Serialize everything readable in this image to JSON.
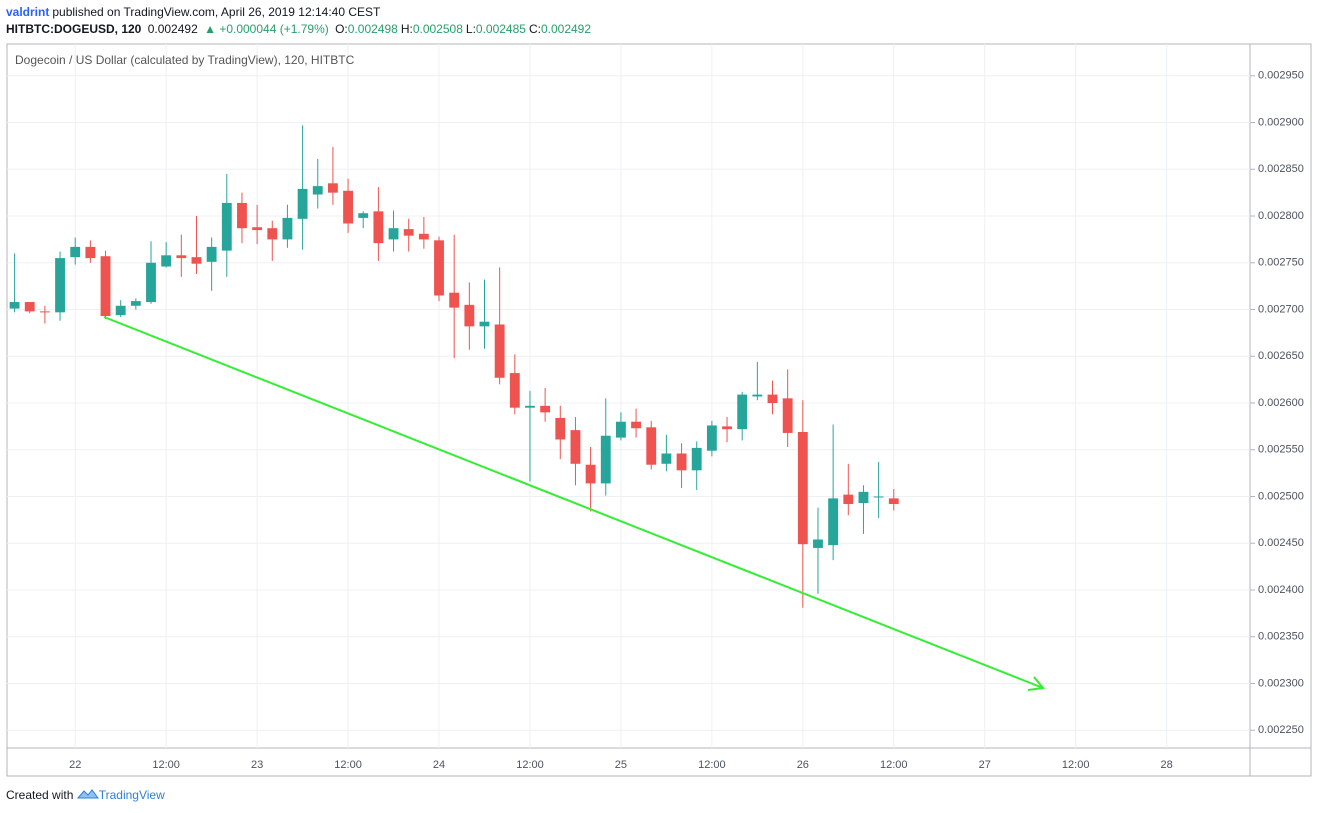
{
  "header": {
    "author": "valdrint",
    "published": "published on TradingView.com, April 26, 2019 12:14:40 CEST",
    "symbol": "HITBTC:DOGEUSD, 120",
    "last": "0.002492",
    "change": "▲ +0.000044 (+1.79%)",
    "ohlc": [
      {
        "label": "O:",
        "value": "0.002498"
      },
      {
        "label": "H:",
        "value": "0.002508"
      },
      {
        "label": "L:",
        "value": "0.002485"
      },
      {
        "label": "C:",
        "value": "0.002492"
      }
    ]
  },
  "chart_data": {
    "type": "candlestick",
    "title": "Dogecoin / US Dollar (calculated by TradingView), 120, HITBTC",
    "categories": [
      null,
      null,
      null,
      null,
      "22",
      null,
      null,
      null,
      null,
      null,
      "12:00",
      null,
      null,
      null,
      null,
      null,
      "23",
      null,
      null,
      null,
      null,
      null,
      "12:00",
      null,
      null,
      null,
      null,
      null,
      "24",
      null,
      null,
      null,
      null,
      null,
      "12:00",
      null,
      null,
      null,
      null,
      null,
      "25",
      null,
      null,
      null,
      null,
      null,
      "12:00",
      null,
      null,
      null,
      null,
      null,
      "26",
      null,
      null,
      null,
      null,
      null,
      "12:00",
      null,
      null,
      null,
      null,
      null,
      "27",
      null,
      null,
      null,
      null,
      null,
      "12:00",
      null,
      null,
      null,
      null,
      null,
      "28",
      null,
      null,
      null,
      null,
      null
    ],
    "open": [
      0.002701,
      0.002708,
      0.002698,
      0.002697,
      0.002756,
      0.002767,
      0.002757,
      0.002694,
      0.002704,
      0.002708,
      0.002746,
      0.002758,
      0.002756,
      0.002751,
      0.002763,
      0.002814,
      0.002788,
      0.002787,
      0.002775,
      0.002797,
      0.002823,
      0.002835,
      0.002827,
      0.002798,
      0.002805,
      0.002775,
      0.002786,
      0.002781,
      0.002774,
      0.002718,
      0.002705,
      0.002682,
      0.002684,
      0.002632,
      0.002595,
      0.002597,
      0.002584,
      0.002571,
      0.002534,
      0.002514,
      0.002563,
      0.00258,
      0.002574,
      0.002535,
      0.002546,
      0.002528,
      0.002549,
      0.002575,
      0.002572,
      0.002607,
      0.002609,
      0.002605,
      0.002569,
      0.002445,
      0.002448,
      0.002502,
      0.002493,
      0.002499,
      0.002498,
      null,
      null,
      null,
      null,
      null,
      null,
      null,
      null,
      null,
      null,
      null,
      null,
      null,
      null,
      null,
      null,
      null,
      null,
      null,
      null,
      null,
      null,
      null
    ],
    "high": [
      0.00276,
      0.002708,
      0.002704,
      0.002762,
      0.002777,
      0.002774,
      0.002763,
      0.00271,
      0.002712,
      0.002773,
      0.002772,
      0.00278,
      0.0028,
      0.002777,
      0.002845,
      0.002825,
      0.002812,
      0.002795,
      0.002812,
      0.002897,
      0.002861,
      0.002874,
      0.00284,
      0.002805,
      0.002831,
      0.002806,
      0.002797,
      0.002799,
      0.002778,
      0.00278,
      0.002729,
      0.002732,
      0.002745,
      0.002652,
      0.002613,
      0.002616,
      0.002597,
      0.002585,
      0.002553,
      0.002605,
      0.00259,
      0.002594,
      0.002581,
      0.002566,
      0.002557,
      0.002559,
      0.002581,
      0.002585,
      0.002612,
      0.002644,
      0.002624,
      0.002636,
      0.002603,
      0.002488,
      0.002577,
      0.002535,
      0.002512,
      0.002537,
      0.002508,
      null,
      null,
      null,
      null,
      null,
      null,
      null,
      null,
      null,
      null,
      null,
      null,
      null,
      null,
      null,
      null,
      null,
      null,
      null,
      null,
      null,
      null,
      null
    ],
    "low": [
      0.002697,
      0.002696,
      0.002685,
      0.002688,
      0.002748,
      0.00275,
      0.00269,
      0.002692,
      0.0027,
      0.002706,
      0.002745,
      0.002735,
      0.002738,
      0.00272,
      0.002735,
      0.002771,
      0.00277,
      0.002752,
      0.002766,
      0.002764,
      0.002808,
      0.002812,
      0.002782,
      0.002787,
      0.002752,
      0.002762,
      0.002762,
      0.002765,
      0.002709,
      0.002648,
      0.002657,
      0.002658,
      0.00262,
      0.002588,
      0.002516,
      0.00258,
      0.00254,
      0.002512,
      0.002484,
      0.002501,
      0.00256,
      0.002563,
      0.002529,
      0.002527,
      0.002509,
      0.002507,
      0.002543,
      0.002558,
      0.00256,
      0.002603,
      0.002588,
      0.002553,
      0.002381,
      0.002396,
      0.002432,
      0.00248,
      0.00246,
      0.002477,
      0.002485,
      null,
      null,
      null,
      null,
      null,
      null,
      null,
      null,
      null,
      null,
      null,
      null,
      null,
      null,
      null,
      null,
      null,
      null,
      null,
      null,
      null,
      null,
      null
    ],
    "close": [
      0.002708,
      0.002698,
      0.002697,
      0.002755,
      0.002767,
      0.002755,
      0.002693,
      0.002704,
      0.002709,
      0.00275,
      0.002758,
      0.002755,
      0.002749,
      0.002767,
      0.002814,
      0.002787,
      0.002785,
      0.002775,
      0.002798,
      0.002829,
      0.002832,
      0.002825,
      0.002792,
      0.002803,
      0.002771,
      0.002787,
      0.002779,
      0.002775,
      0.002715,
      0.002702,
      0.002682,
      0.002687,
      0.002627,
      0.002595,
      0.002597,
      0.00259,
      0.002561,
      0.002535,
      0.002514,
      0.002565,
      0.00258,
      0.002573,
      0.002534,
      0.002546,
      0.002528,
      0.002552,
      0.002576,
      0.002572,
      0.002609,
      0.002609,
      0.0026,
      0.002568,
      0.002449,
      0.002454,
      0.002498,
      0.002492,
      0.002505,
      0.0025,
      0.002492,
      null,
      null,
      null,
      null,
      null,
      null,
      null,
      null,
      null,
      null,
      null,
      null,
      null,
      null,
      null,
      null,
      null,
      null,
      null,
      null,
      null,
      null,
      null
    ],
    "up_color": "#26a69a",
    "down_color": "#ef5350",
    "ylim": [
      0.002231,
      0.002984
    ],
    "yticks": [
      {
        "value": 0.00225,
        "label": "0.002250"
      },
      {
        "value": 0.0023,
        "label": "0.002300"
      },
      {
        "value": 0.00235,
        "label": "0.002350"
      },
      {
        "value": 0.0024,
        "label": "0.002400"
      },
      {
        "value": 0.00245,
        "label": "0.002450"
      },
      {
        "value": 0.0025,
        "label": "0.002500"
      },
      {
        "value": 0.00255,
        "label": "0.002550"
      },
      {
        "value": 0.0026,
        "label": "0.002600"
      },
      {
        "value": 0.00265,
        "label": "0.002650"
      },
      {
        "value": 0.0027,
        "label": "0.002700"
      },
      {
        "value": 0.00275,
        "label": "0.002750"
      },
      {
        "value": 0.0028,
        "label": "0.002800"
      },
      {
        "value": 0.00285,
        "label": "0.002850"
      },
      {
        "value": 0.0029,
        "label": "0.002900"
      },
      {
        "value": 0.00295,
        "label": "0.002950"
      }
    ],
    "grid": true
  },
  "footer": {
    "created": "Created with",
    "brand": "TradingView"
  }
}
